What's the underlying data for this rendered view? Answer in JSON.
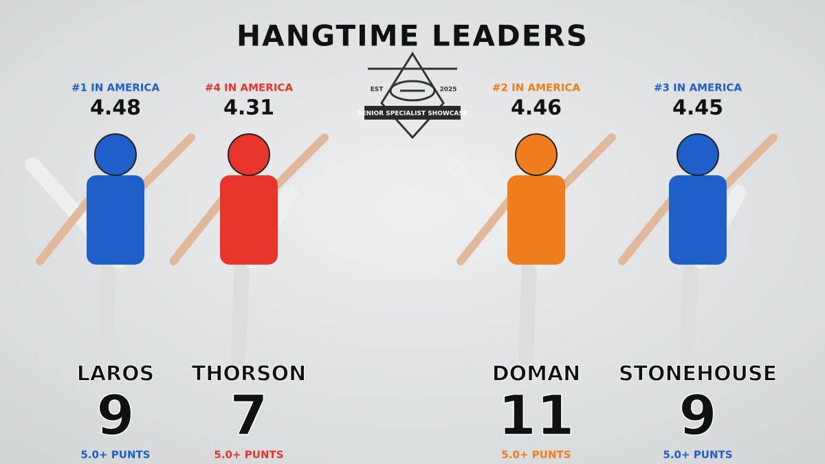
{
  "title": "HANGTIME LEADERS",
  "logo": {
    "est": "EST",
    "year": "2025",
    "name": "SENIOR SPECIALIST SHOWCASE"
  },
  "players": [
    {
      "rank": "#1 IN AMERICA",
      "hangtime": "4.48",
      "name": "LAROS",
      "count": "9",
      "count_label": "5.0+ PUNTS",
      "color": "#1f5fc9"
    },
    {
      "rank": "#4 IN AMERICA",
      "hangtime": "4.31",
      "name": "THORSON",
      "count": "7",
      "count_label": "5.0+ PUNTS",
      "color": "#e8352b"
    },
    {
      "rank": "#2 IN AMERICA",
      "hangtime": "4.46",
      "name": "DOMAN",
      "count": "11",
      "count_label": "5.0+ PUNTS",
      "color": "#f07d1c"
    },
    {
      "rank": "#3 IN AMERICA",
      "hangtime": "4.45",
      "name": "STONEHOUSE",
      "count": "9",
      "count_label": "5.0+ PUNTS",
      "color": "#1f5fc9"
    }
  ]
}
